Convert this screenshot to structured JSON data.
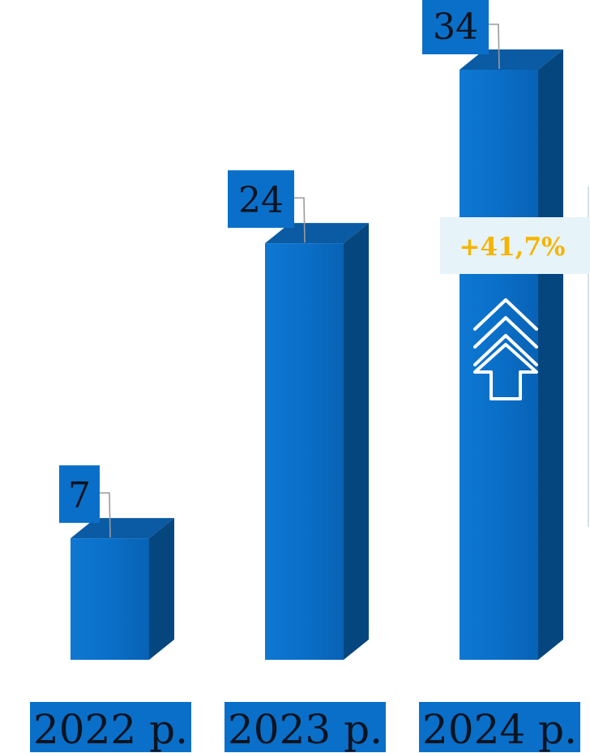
{
  "chart_data": {
    "type": "bar",
    "categories": [
      "2022 р.",
      "2023 р.",
      "2024 р."
    ],
    "values": [
      7,
      24,
      34
    ],
    "data_labels": [
      "7",
      "24",
      "34"
    ],
    "ylim": [
      0,
      34
    ],
    "grid": false,
    "legend": "none",
    "annotation": {
      "text": "+41,7%",
      "attached_to": "2024 р.",
      "icon": "triple-chevron-up-arrow-icon"
    },
    "colors": {
      "bar_front": "#0a6fc8",
      "bar_side": "#05467f",
      "bar_top": "#0a5ba3",
      "label_bg": "#0a6fc8",
      "annotation_bg": "#e6f3f9",
      "annotation_text": "#f5b400",
      "leader_line": "#9a9a9a"
    }
  }
}
